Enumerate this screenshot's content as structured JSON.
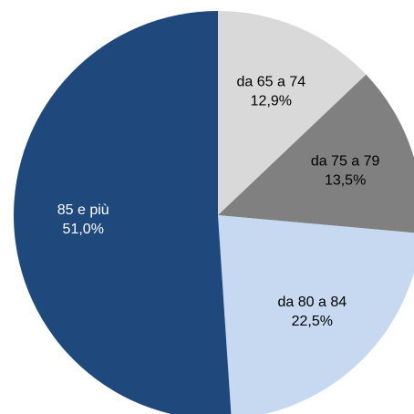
{
  "chart_data": {
    "type": "pie",
    "categories": [
      "da 65 a 74",
      "da 75 a 79",
      "da 80 a 84",
      "85 e più"
    ],
    "values": [
      12.9,
      13.5,
      22.5,
      51.0
    ],
    "value_labels": [
      "12,9%",
      "13,5%",
      "22,5%",
      "51,0%"
    ],
    "colors": [
      "#d9d9d9",
      "#808080",
      "#c6d9f1",
      "#1f497d"
    ]
  }
}
